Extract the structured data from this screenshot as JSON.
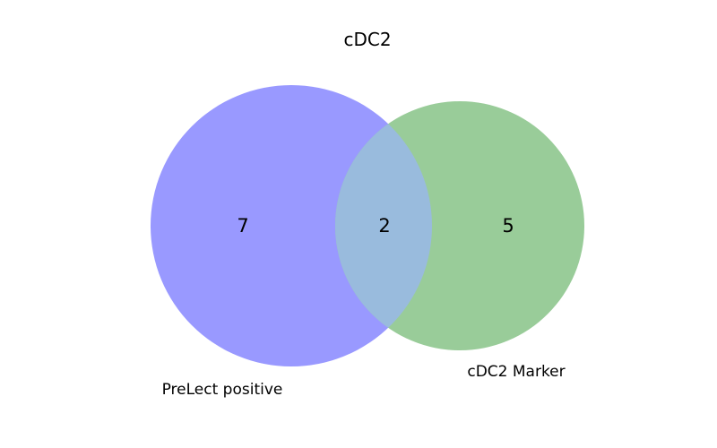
{
  "title": "cDC2",
  "sets": [
    {
      "label": "PreLect positive",
      "only_count": "7",
      "color": "#9999ff"
    },
    {
      "label": "cDC2 Marker",
      "only_count": "5",
      "color": "#99cc99"
    }
  ],
  "intersection": {
    "count": "2",
    "color": "#99bbdd"
  }
}
